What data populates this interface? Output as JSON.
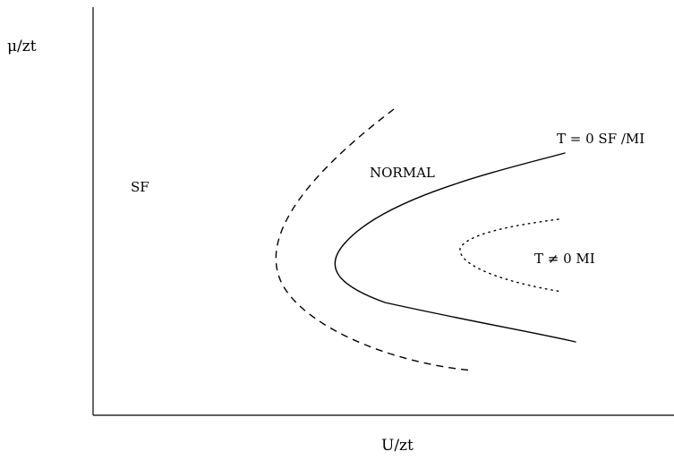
{
  "diagram": {
    "axes": {
      "y_label": "μ/zt",
      "x_label": "U/zt"
    },
    "regions": {
      "sf": "SF",
      "normal": "NORMAL",
      "mi_nonzero_t": "T ≠ 0 MI"
    },
    "boundaries": [
      {
        "label": "T = 0 SF /MI",
        "style": "solid"
      },
      {
        "label": "",
        "style": "dashed"
      },
      {
        "label": "",
        "style": "dotted"
      }
    ],
    "colors": {
      "ink": "#000000",
      "background": "#ffffff"
    }
  }
}
